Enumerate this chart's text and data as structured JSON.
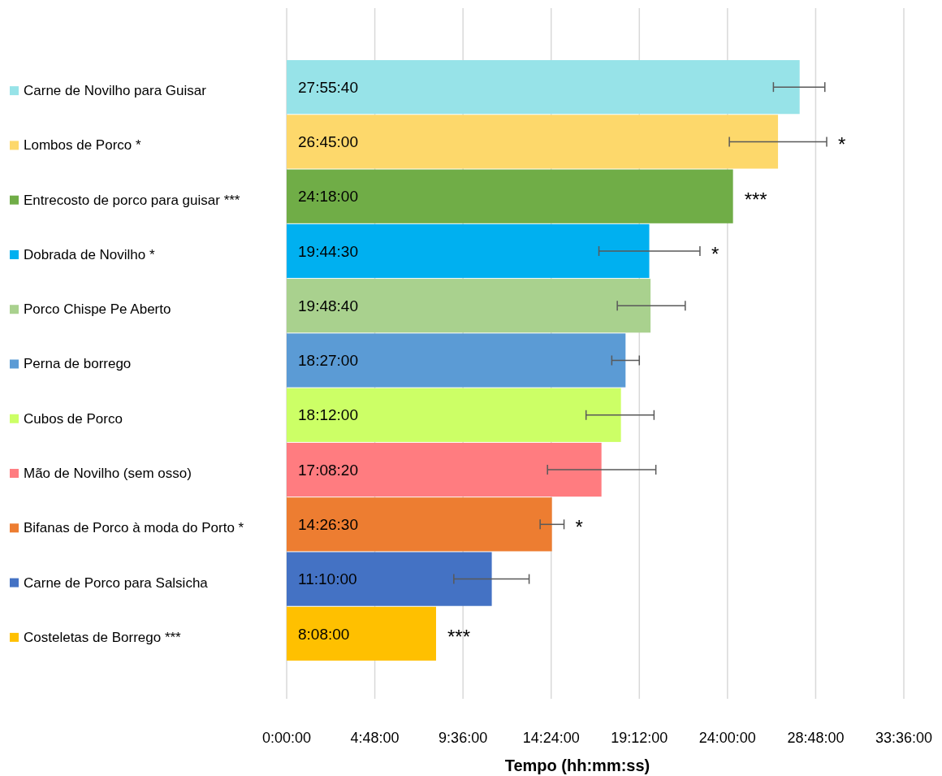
{
  "chart_data": {
    "type": "bar",
    "orientation": "horizontal",
    "xlabel": "Tempo (hh:mm:ss)",
    "categories": [
      "Carne de Novilho para Guisar",
      "Lombos de Porco *",
      "Entrecosto de porco para guisar ***",
      "Dobrada de Novilho *",
      "Porco Chispe Pe Aberto",
      "Perna de borrego",
      "Cubos de Porco",
      "Mão de Novilho (sem osso)",
      "Bifanas de Porco à moda do Porto *",
      "Carne de Porco para Salsicha",
      "Costeletas de Borrego ***"
    ],
    "values": [
      27.9278,
      26.75,
      24.3,
      19.7417,
      19.8111,
      18.45,
      18.2,
      17.1389,
      14.4417,
      11.1667,
      8.1333
    ],
    "value_labels": [
      "27:55:40",
      "26:45:00",
      "24:18:00",
      "19:44:30",
      "19:48:40",
      "18:27:00",
      "18:12:00",
      "17:08:20",
      "14:26:30",
      "11:10:00",
      "8:08:00"
    ],
    "colors": [
      "#97e3e8",
      "#fdd86b",
      "#70ad47",
      "#00b0f0",
      "#a9d18e",
      "#5b9bd5",
      "#ccff66",
      "#ff7c80",
      "#ed7d31",
      "#4472c4",
      "#ffc000"
    ],
    "errors": [
      [
        26.5,
        29.3
      ],
      [
        24.1,
        29.4
      ],
      null,
      [
        17.0,
        22.5
      ],
      [
        18.0,
        21.7
      ],
      [
        17.7,
        19.2
      ],
      [
        16.3,
        20.0
      ],
      [
        14.2,
        20.1
      ],
      [
        13.8,
        15.1
      ],
      [
        9.1,
        13.2
      ],
      null
    ],
    "xlim": [
      0,
      33.6
    ],
    "xticks": [
      {
        "value": 0,
        "label": "0:00:00"
      },
      {
        "value": 4.8,
        "label": "4:48:00"
      },
      {
        "value": 9.6,
        "label": "9:36:00"
      },
      {
        "value": 14.4,
        "label": "14:24:00"
      },
      {
        "value": 19.2,
        "label": "19:12:00"
      },
      {
        "value": 24,
        "label": "24:00:00"
      },
      {
        "value": 28.8,
        "label": "28:48:00"
      },
      {
        "value": 33.6,
        "label": "33:36:00"
      }
    ],
    "grid": "x",
    "annotations": [
      {
        "text": "*",
        "x": 29.4,
        "y": "Lombos de Porco *"
      },
      {
        "text": "***",
        "x": 24.3,
        "y": "Entrecosto de porco para guisar ***"
      },
      {
        "text": "*",
        "x": 22.5,
        "y": "Dobrada de Novilho *"
      },
      {
        "text": "*",
        "x": 15.1,
        "y": "Bifanas de Porco à moda do Porto *"
      },
      {
        "text": "***",
        "x": 8.1333,
        "y": "Costeletas de Borrego ***"
      }
    ]
  }
}
